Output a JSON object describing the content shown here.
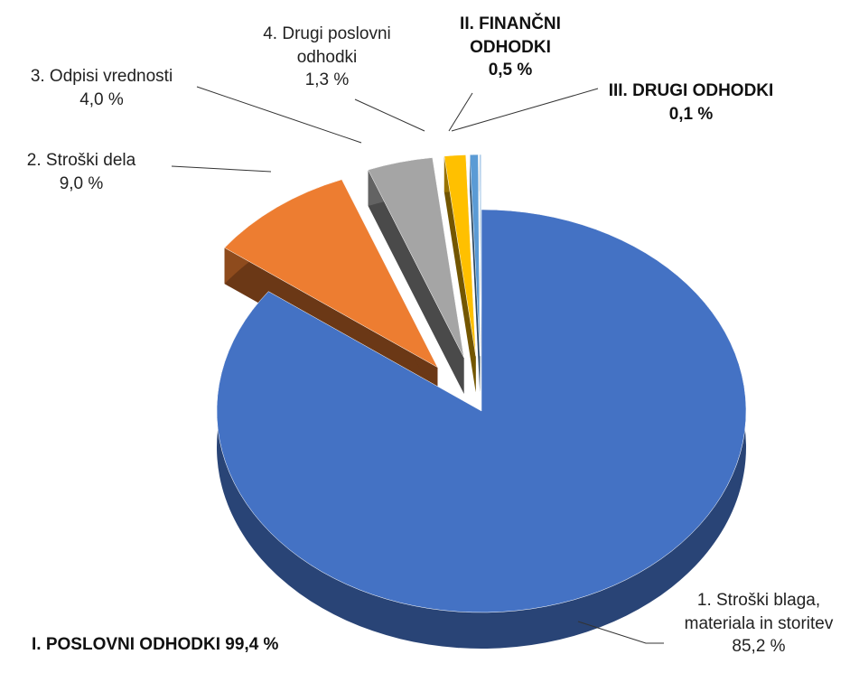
{
  "chart_data": {
    "type": "pie",
    "categories": [
      "1. Stroški blaga, materiala in storitev",
      "2. Stroški dela",
      "3. Odpisi vrednosti",
      "4. Drugi poslovni odhodki",
      "II. FINANČNI ODHODKI",
      "III. DRUGI ODHODKI"
    ],
    "values": [
      85.2,
      9.0,
      4.0,
      1.3,
      0.5,
      0.1
    ],
    "value_labels": [
      "85,2 %",
      "9,0 %",
      "4,0 %",
      "1,3 %",
      "0,5 %",
      "0,1 %"
    ],
    "colors": [
      "#4472c4",
      "#ed7d31",
      "#a5a5a5",
      "#ffc000",
      "#5b9bd5",
      "#9dc3e6"
    ],
    "annotation": "I. POSLOVNI ODHODKI 99,4 %"
  }
}
